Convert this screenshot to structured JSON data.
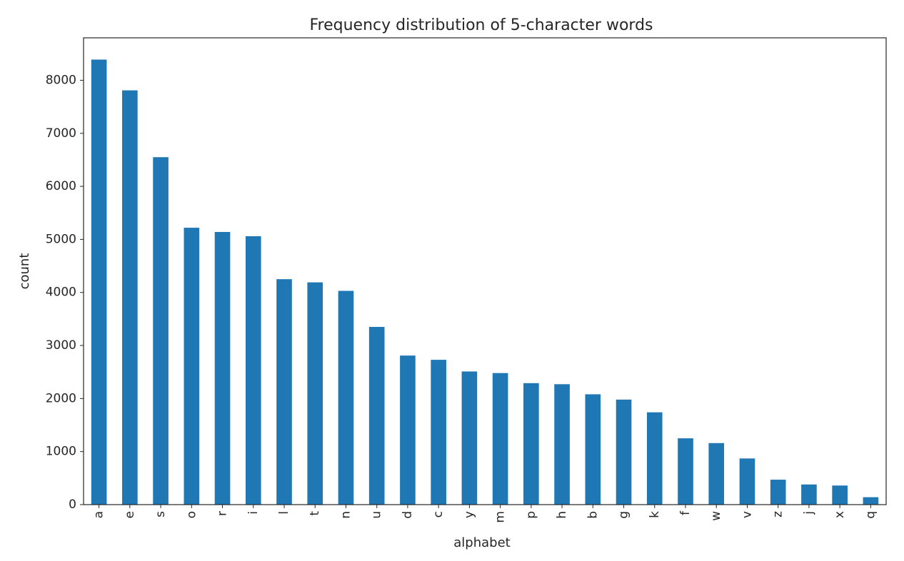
{
  "chart_data": {
    "type": "bar",
    "title": "Frequency distribution of 5-character words",
    "xlabel": "alphabet",
    "ylabel": "count",
    "categories": [
      "a",
      "e",
      "s",
      "o",
      "r",
      "i",
      "l",
      "t",
      "n",
      "u",
      "d",
      "c",
      "y",
      "m",
      "p",
      "h",
      "b",
      "g",
      "k",
      "f",
      "w",
      "v",
      "z",
      "j",
      "x",
      "q"
    ],
    "values": [
      8390,
      7810,
      6550,
      5220,
      5140,
      5060,
      4250,
      4190,
      4030,
      3350,
      2810,
      2730,
      2510,
      2480,
      2290,
      2270,
      2080,
      1980,
      1740,
      1250,
      1160,
      870,
      470,
      380,
      360,
      140
    ],
    "yticks": [
      0,
      1000,
      2000,
      3000,
      4000,
      5000,
      6000,
      7000,
      8000
    ],
    "ylim": [
      0,
      8800
    ],
    "grid": false,
    "legend": false,
    "bar_color": "#1f77b4",
    "x_tick_rotation": "vertical"
  }
}
